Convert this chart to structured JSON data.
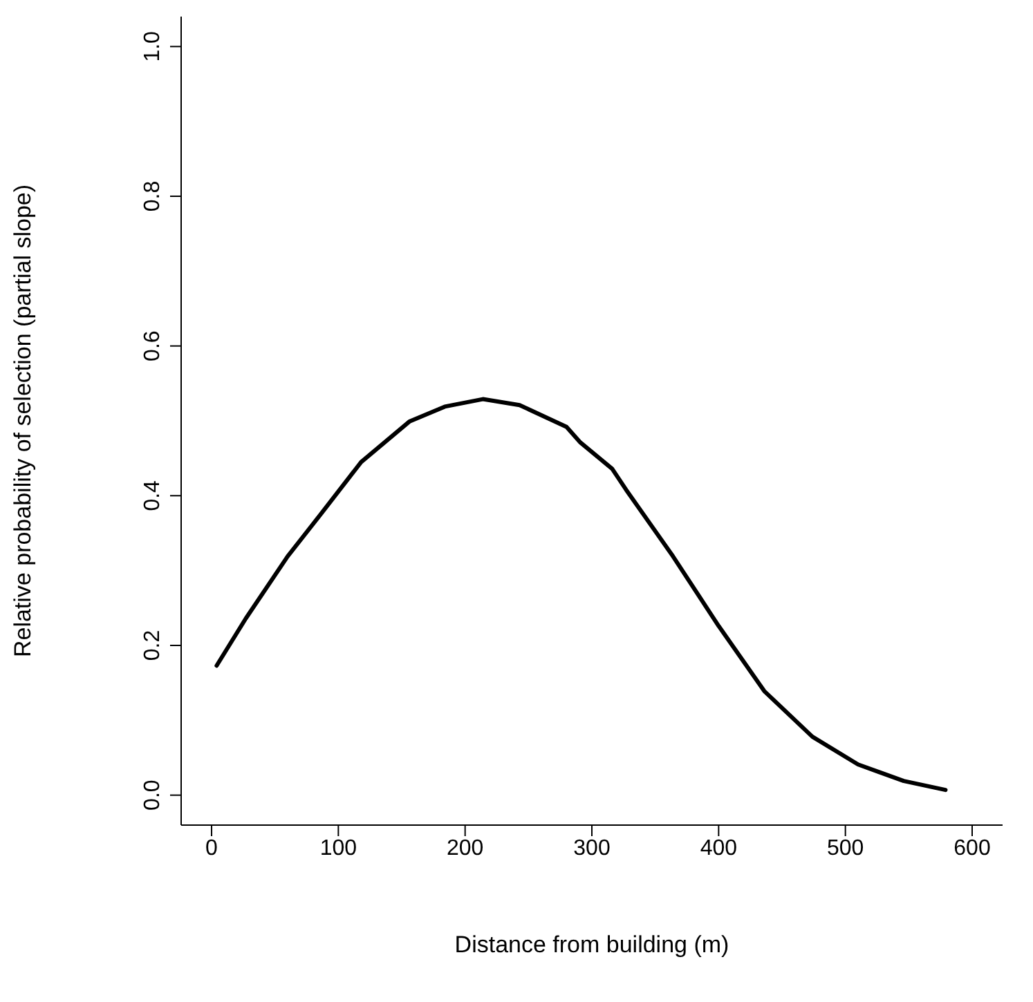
{
  "chart_data": {
    "type": "line",
    "xlabel": "Distance from building (m)",
    "ylabel": "Relative probability of selection (partial slope)",
    "x": [
      4,
      27,
      60,
      86,
      118,
      156,
      184,
      214,
      243,
      280,
      291,
      316,
      327,
      364,
      400,
      436,
      474,
      510,
      546,
      579
    ],
    "series": [
      {
        "color": "#000000",
        "values": [
          0.173,
          0.236,
          0.319,
          0.375,
          0.445,
          0.499,
          0.519,
          0.529,
          0.521,
          0.492,
          0.471,
          0.436,
          0.408,
          0.319,
          0.226,
          0.139,
          0.078,
          0.041,
          0.019,
          0.007
        ]
      }
    ],
    "xlim": [
      -24,
      624
    ],
    "xticks": [
      0,
      100,
      200,
      300,
      400,
      500,
      600
    ],
    "ylim": [
      -0.04,
      1.04
    ],
    "yticks": [
      {
        "value": 0,
        "label": "0.0"
      },
      {
        "value": 0.2,
        "label": "0.2"
      },
      {
        "value": 0.4,
        "label": "0.4"
      },
      {
        "value": 0.6,
        "label": "0.6"
      },
      {
        "value": 0.8,
        "label": "0.8"
      },
      {
        "value": 1,
        "label": "1.0"
      }
    ],
    "grid": false,
    "legend": false,
    "marker": "none",
    "line_style": "solid"
  }
}
